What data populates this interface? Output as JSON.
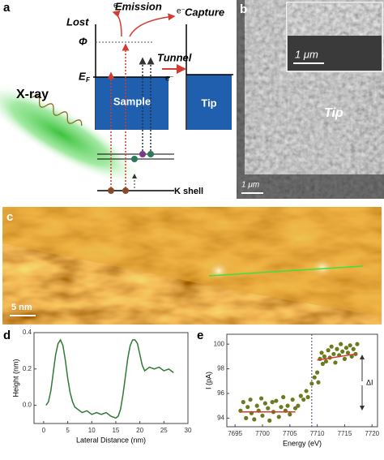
{
  "panel_a": {
    "label": "a",
    "electron": "e⁻",
    "emission": "Emission",
    "lost": "Lost",
    "capture": "Capture",
    "phi": "Φ",
    "tunnel": "Tunnel",
    "fermi_main": "E",
    "fermi_sub": "F",
    "sample": "Sample",
    "tip": "Tip",
    "xray": "X-ray",
    "kshell": "K shell"
  },
  "panel_b": {
    "label": "b",
    "scale_inset": "1 μm",
    "scale_main": "1 μm",
    "tip": "Tip"
  },
  "panel_c": {
    "label": "c",
    "scale": "5 nm"
  },
  "chart_data": [
    {
      "type": "line",
      "label": "d",
      "ylabel": "Height (nm)",
      "xlabel": "Lateral Distance (nm)",
      "xlim": [
        -2,
        30
      ],
      "xticks": [
        0,
        5,
        10,
        15,
        20,
        25,
        30
      ],
      "ylim": [
        -0.1,
        0.4
      ],
      "yticks": [
        {
          "value": 0,
          "label": "0.0"
        },
        {
          "value": 0.2,
          "label": "0.2"
        },
        {
          "value": 0.4,
          "label": "0.4"
        }
      ],
      "series": [
        {
          "color": "#2f7a33",
          "x": [
            0.5,
            1,
            1.5,
            2,
            2.5,
            3,
            3.5,
            4,
            4.5,
            5,
            5.5,
            6,
            6.5,
            7,
            8,
            9,
            10,
            11,
            12,
            13,
            14,
            15,
            15.5,
            16,
            16.5,
            17,
            17.5,
            18,
            18.5,
            19,
            19.5,
            20,
            20.5,
            21,
            22,
            23,
            24,
            25,
            26,
            27
          ],
          "values": [
            0.0,
            0.02,
            0.08,
            0.18,
            0.28,
            0.34,
            0.36,
            0.33,
            0.25,
            0.15,
            0.07,
            0.02,
            -0.01,
            -0.02,
            -0.04,
            -0.03,
            -0.05,
            -0.04,
            -0.05,
            -0.04,
            -0.06,
            -0.07,
            -0.06,
            -0.02,
            0.06,
            0.16,
            0.26,
            0.33,
            0.36,
            0.36,
            0.34,
            0.28,
            0.22,
            0.19,
            0.21,
            0.2,
            0.21,
            0.19,
            0.2,
            0.18
          ]
        }
      ]
    },
    {
      "type": "scatter",
      "label": "e",
      "ylabel": "I (pA)",
      "xlabel": "Energy (eV)",
      "delta_label": "ΔI",
      "xlim": [
        7693.5,
        7721
      ],
      "xticks": [
        7695,
        7700,
        7705,
        7710,
        7715,
        7720
      ],
      "ylim": [
        93.3,
        100.8
      ],
      "yticks": [
        94,
        96,
        98,
        100
      ],
      "reference_x": 7709,
      "series": [
        {
          "color": "#6b7a1e",
          "x": [
            7696,
            7696.5,
            7697,
            7697.3,
            7697.8,
            7698,
            7698.5,
            7699,
            7699.3,
            7699.8,
            7700,
            7700.5,
            7701,
            7701.3,
            7701.8,
            7702,
            7702.5,
            7703,
            7703.4,
            7703.8,
            7704.2,
            7704.6,
            7705,
            7705.5,
            7706,
            7706.5,
            7707,
            7707.5,
            7708,
            7708.3,
            7709,
            7709.5,
            7710,
            7710.2,
            7710.5,
            7710.8,
            7711,
            7711.3,
            7711.6,
            7712,
            7712.3,
            7712.6,
            7713,
            7713.3,
            7713.6,
            7714,
            7714.3,
            7714.6,
            7715,
            7715.3,
            7715.6,
            7716,
            7716.3,
            7716.6,
            7717,
            7717.3
          ],
          "values": [
            94.6,
            95.3,
            94.0,
            94.9,
            95.5,
            94.4,
            93.9,
            95.0,
            94.6,
            95.6,
            94.2,
            95.2,
            94.8,
            93.8,
            95.3,
            94.5,
            95.4,
            94.1,
            94.9,
            95.7,
            94.6,
            95.0,
            94.3,
            95.5,
            94.8,
            95.0,
            95.8,
            95.5,
            96.2,
            95.7,
            96.8,
            97.3,
            97.7,
            96.9,
            98.8,
            99.3,
            98.4,
            99.0,
            98.6,
            99.5,
            98.9,
            99.8,
            99.2,
            98.5,
            99.6,
            99.1,
            100.0,
            99.4,
            98.8,
            99.7,
            99.3,
            99.9,
            99.0,
            99.6,
            99.2,
            100.0
          ]
        }
      ],
      "fit_lines": [
        {
          "color": "#d23b2f",
          "x": [
            7696,
            7706
          ],
          "values": [
            94.5,
            94.5
          ]
        },
        {
          "color": "#d23b2f",
          "x": [
            7710,
            7717
          ],
          "values": [
            98.7,
            99.2
          ]
        }
      ]
    }
  ]
}
